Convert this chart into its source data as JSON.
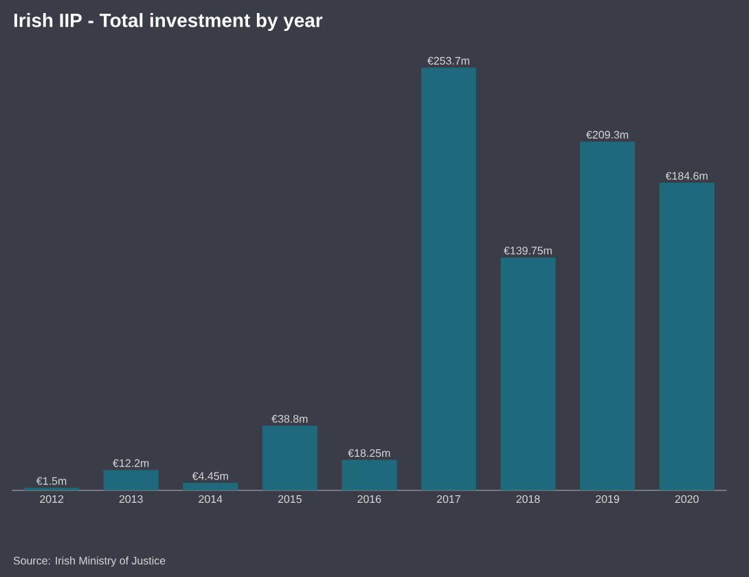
{
  "chart_data": {
    "type": "bar",
    "title": "Irish IIP - Total investment by year",
    "categories": [
      "2012",
      "2013",
      "2014",
      "2015",
      "2016",
      "2017",
      "2018",
      "2019",
      "2020"
    ],
    "values": [
      1.5,
      12.2,
      4.45,
      38.8,
      18.25,
      253.7,
      139.75,
      209.3,
      184.6
    ],
    "value_labels": [
      "€1.5m",
      "€12.2m",
      "€4.45m",
      "€38.8m",
      "€18.25m",
      "€253.7m",
      "€139.75m",
      "€209.3m",
      "€184.6m"
    ],
    "color": "#1e6a7c",
    "annotations": [
      "Source: Irish Ministry of Justice"
    ]
  }
}
